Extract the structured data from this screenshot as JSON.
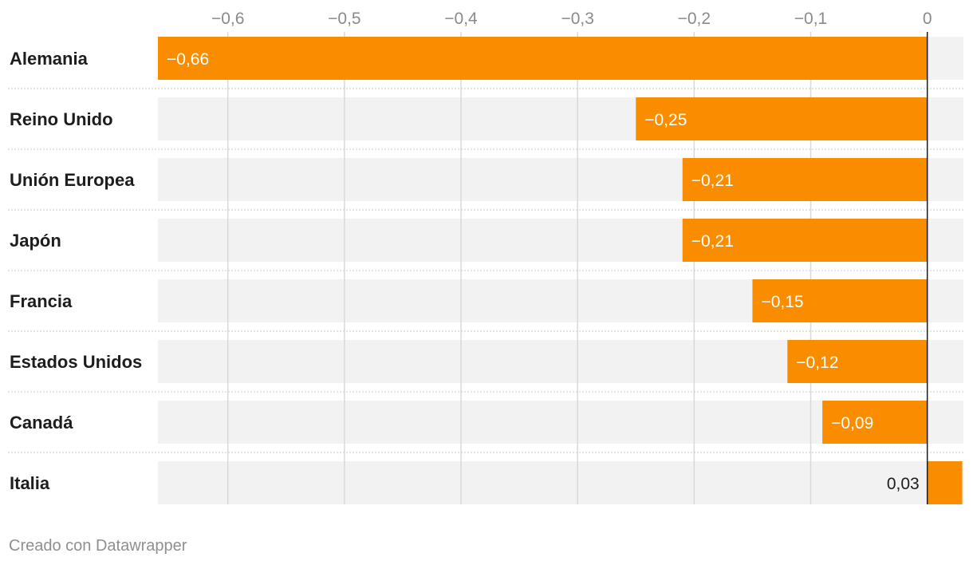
{
  "chart_data": {
    "type": "bar",
    "orientation": "horizontal",
    "title": "",
    "xlabel": "",
    "ylabel": "",
    "categories": [
      "Alemania",
      "Reino Unido",
      "Unión Europea",
      "Japón",
      "Francia",
      "Estados Unidos",
      "Canadá",
      "Italia"
    ],
    "values": [
      -0.66,
      -0.25,
      -0.21,
      -0.21,
      -0.15,
      -0.12,
      -0.09,
      0.03
    ],
    "value_labels": [
      "−0,66",
      "−0,25",
      "−0,21",
      "−0,21",
      "−0,15",
      "−0,12",
      "−0,09",
      "0,03"
    ],
    "x_ticks": [
      -0.6,
      -0.5,
      -0.4,
      -0.3,
      -0.2,
      -0.1,
      0
    ],
    "x_tick_labels": [
      "−0,6",
      "−0,5",
      "−0,4",
      "−0,3",
      "−0,2",
      "−0,1",
      "0"
    ],
    "xlim": [
      -0.66,
      0.031
    ],
    "grid": true,
    "legend": "none",
    "bar_color": "#fa8c00",
    "track_color": "#f2f2f2"
  },
  "footer": {
    "credit": "Creado con Datawrapper"
  }
}
